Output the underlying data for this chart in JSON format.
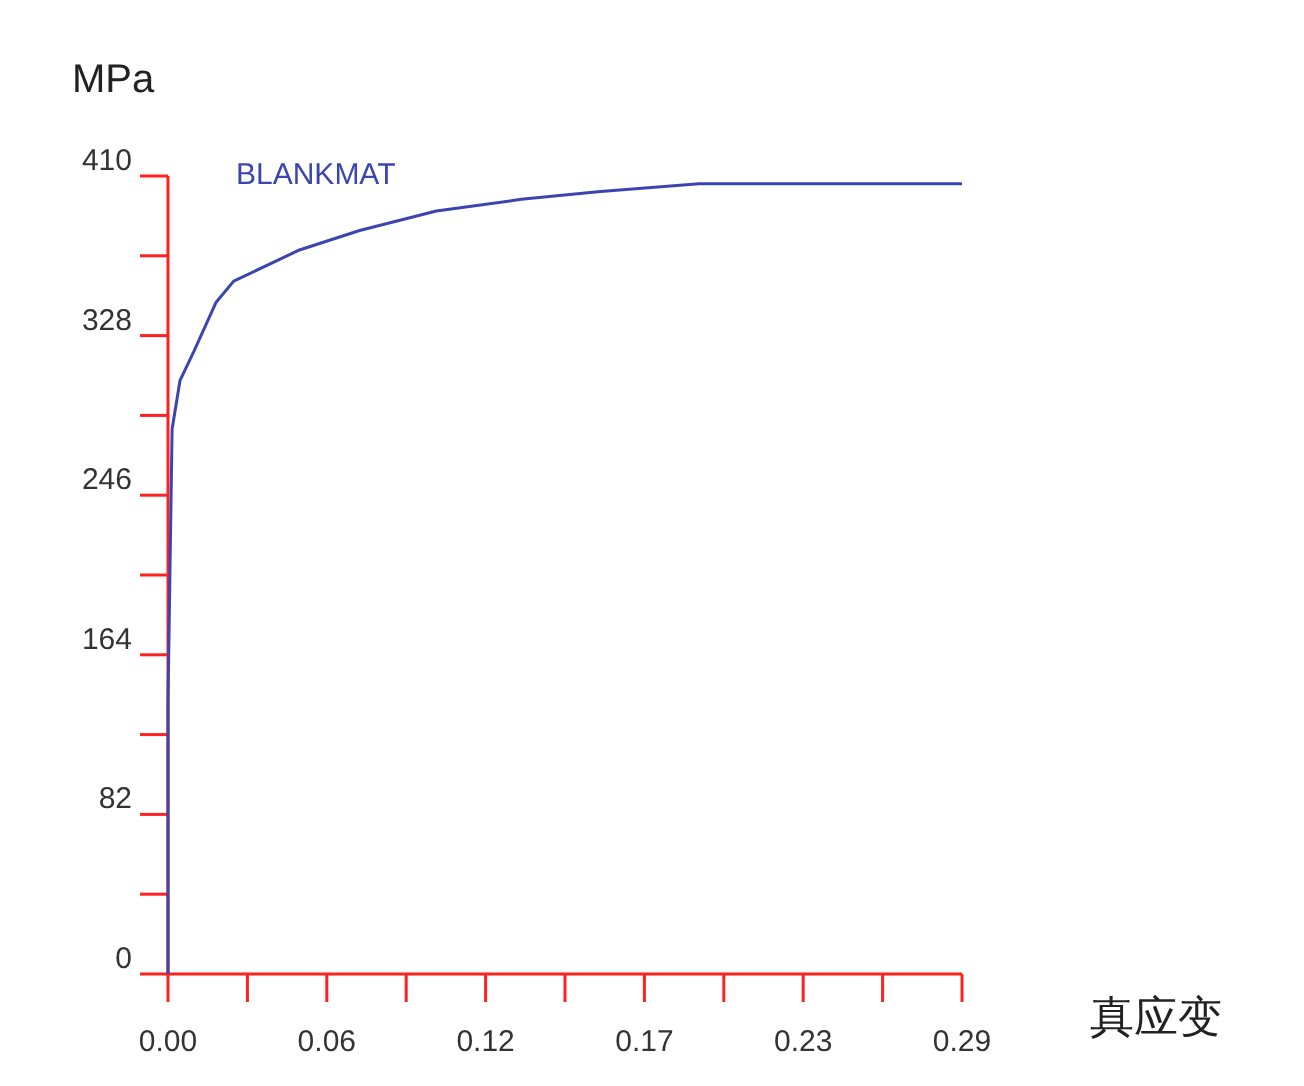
{
  "chart_data": {
    "type": "line",
    "xlabel": "真应变",
    "ylabel": "MPa",
    "x": [
      0,
      0,
      0.0015,
      0.0044,
      0.0095,
      0.0175,
      0.024,
      0.048,
      0.07,
      0.098,
      0.129,
      0.158,
      0.194,
      0.29
    ],
    "series": [
      {
        "name": "BLANKMAT",
        "color": "#3a45b0",
        "values": [
          0,
          140,
          280,
          305,
          320,
          345,
          356,
          372,
          382,
          392,
          398,
          402,
          406,
          406
        ]
      }
    ],
    "xlim": [
      0,
      0.29
    ],
    "ylim": [
      0,
      410
    ],
    "xticks": [
      {
        "value": 0,
        "label": "0.00"
      },
      {
        "value": 0.029,
        "label": null
      },
      {
        "value": 0.058,
        "label": "0.06"
      },
      {
        "value": 0.087,
        "label": null
      },
      {
        "value": 0.116,
        "label": "0.12"
      },
      {
        "value": 0.145,
        "label": null
      },
      {
        "value": 0.174,
        "label": "0.17"
      },
      {
        "value": 0.203,
        "label": null
      },
      {
        "value": 0.232,
        "label": "0.23"
      },
      {
        "value": 0.261,
        "label": null
      },
      {
        "value": 0.29,
        "label": "0.29"
      }
    ],
    "yticks": [
      0,
      {
        "value": 41,
        "label": null
      },
      82,
      {
        "value": 123,
        "label": null
      },
      164,
      {
        "value": 205,
        "label": null
      },
      246,
      {
        "value": 287,
        "label": null
      },
      328,
      {
        "value": 369,
        "label": null
      },
      410
    ],
    "grid": false,
    "marker": "none",
    "line_style": "solid"
  }
}
